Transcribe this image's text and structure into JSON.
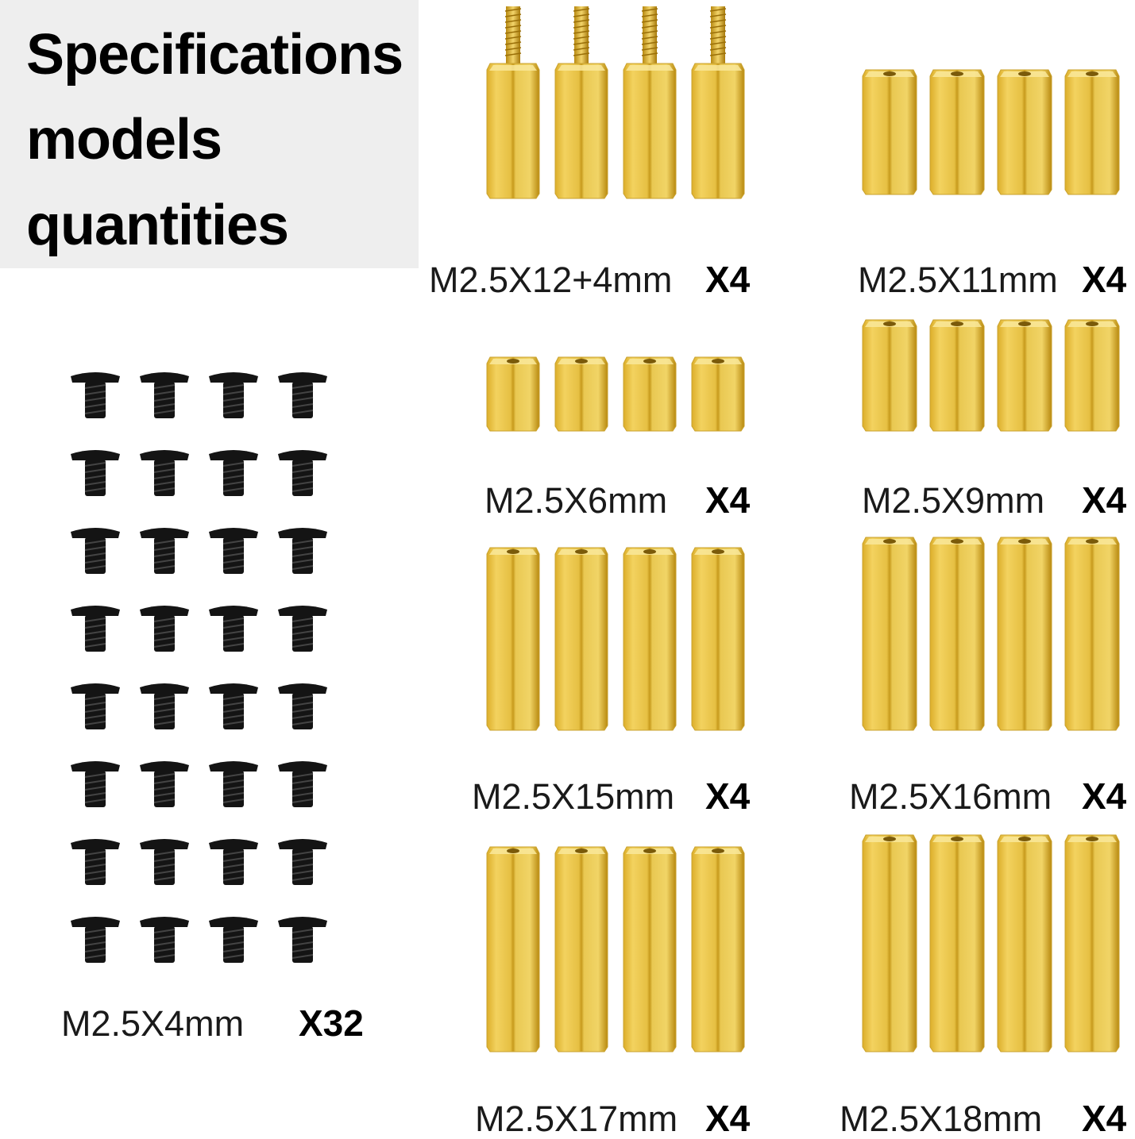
{
  "title": {
    "lines": [
      "Specifications",
      "models",
      "quantities"
    ]
  },
  "colors": {
    "brass_light": "#f6dd7a",
    "brass_mid": "#e3b935",
    "brass_dark": "#b88a12",
    "screw": "#141414",
    "title_bg": "#eeeeee"
  },
  "icons": {
    "screw": "black-screw-icon",
    "standoff": "brass-hex-standoff-icon"
  },
  "screw_group": {
    "size": "M2.5X4mm",
    "qty": "X32",
    "rows": 8,
    "cols": 4
  },
  "standoffs": [
    {
      "size": "M2.5X12+4mm",
      "qty": "X4",
      "count": 4,
      "threaded": true
    },
    {
      "size": "M2.5X11mm",
      "qty": "X4",
      "count": 4
    },
    {
      "size": "M2.5X6mm",
      "qty": "X4",
      "count": 4
    },
    {
      "size": "M2.5X9mm",
      "qty": "X4",
      "count": 4
    },
    {
      "size": "M2.5X15mm",
      "qty": "X4",
      "count": 4
    },
    {
      "size": "M2.5X16mm",
      "qty": "X4",
      "count": 4
    },
    {
      "size": "M2.5X17mm",
      "qty": "X4",
      "count": 4
    },
    {
      "size": "M2.5X18mm",
      "qty": "X4",
      "count": 4
    }
  ]
}
